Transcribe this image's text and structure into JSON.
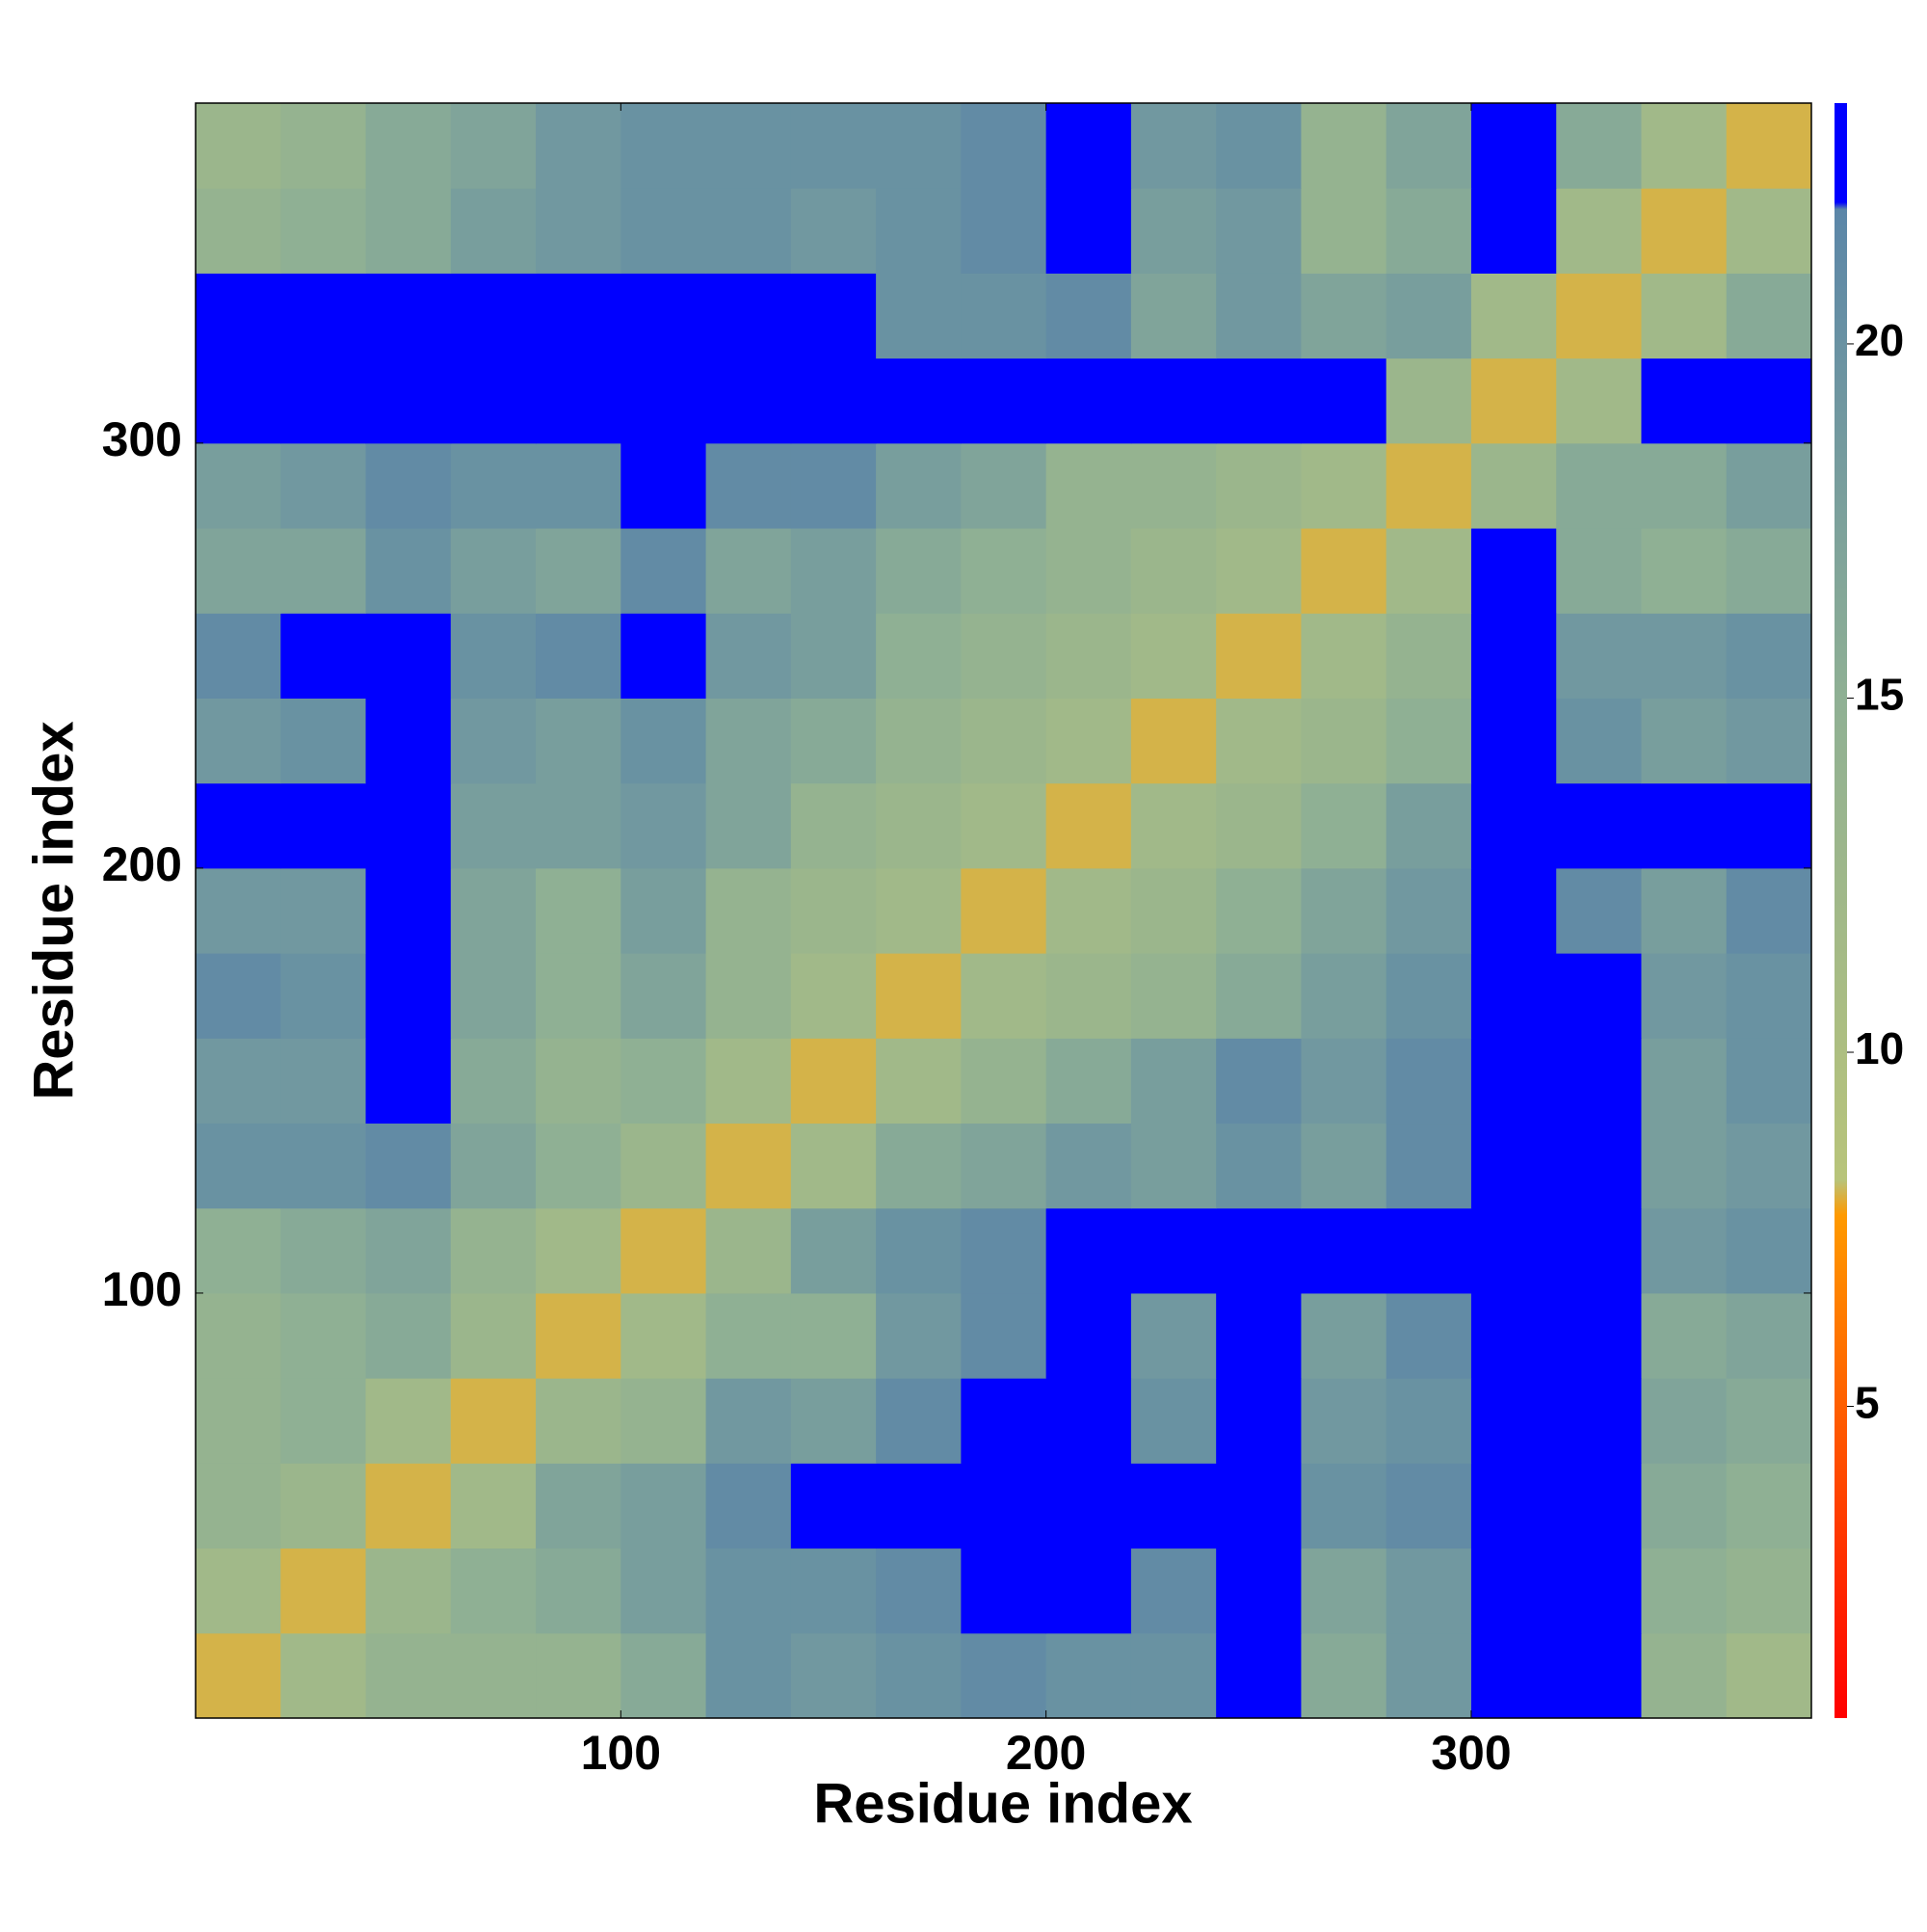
{
  "chart_data": {
    "type": "heatmap",
    "x_label": "Residue index",
    "y_label": "Residue index",
    "x_bins": [
      0,
      20,
      40,
      60,
      80,
      100,
      120,
      140,
      160,
      180,
      200,
      220,
      240,
      260,
      280,
      300,
      320,
      340,
      360,
      380
    ],
    "y_bins": [
      0,
      20,
      40,
      60,
      80,
      100,
      120,
      140,
      160,
      180,
      200,
      220,
      240,
      260,
      280,
      300,
      320,
      340,
      360,
      380
    ],
    "xlim": [
      0,
      380
    ],
    "ylim": [
      0,
      380
    ],
    "xticks": [
      100,
      200,
      300
    ],
    "yticks": [
      100,
      200,
      300
    ],
    "colorbar_lim": [
      0.6,
      23.4
    ],
    "colorbar_ticks": [
      5,
      10,
      15,
      20
    ],
    "colorscale": [
      [
        0.6,
        "#ff0000"
      ],
      [
        3,
        "#ff3300"
      ],
      [
        7.7,
        "#ff9a00"
      ],
      [
        8.2,
        "#b8c47a"
      ],
      [
        15,
        "#8fb094"
      ],
      [
        21.9,
        "#5b86a8"
      ],
      [
        22,
        "#0000ff"
      ],
      [
        23.4,
        "#0000ff"
      ]
    ],
    "matrix": [
      [
        8,
        12,
        14,
        14,
        14,
        16,
        20,
        19,
        20,
        21,
        20,
        20,
        22,
        16,
        19,
        23,
        22,
        14,
        12
      ],
      [
        12,
        8,
        13,
        15,
        16,
        18,
        20,
        20,
        21,
        22,
        22,
        21,
        22,
        17,
        19,
        23,
        22,
        15,
        14
      ],
      [
        14,
        13,
        8,
        12,
        17,
        18,
        21,
        22,
        22,
        23,
        23,
        22,
        23,
        20,
        21,
        23,
        23,
        16,
        15
      ],
      [
        14,
        15,
        12,
        8,
        13,
        14,
        19,
        18,
        21,
        22,
        22,
        20,
        22,
        19,
        20,
        23,
        23,
        17,
        16
      ],
      [
        14,
        15,
        16,
        13,
        8,
        12,
        15,
        15,
        19,
        21,
        22,
        19,
        22,
        18,
        21,
        23,
        23,
        16,
        17
      ],
      [
        15,
        16,
        17,
        14,
        12,
        8,
        13,
        18,
        20,
        21,
        22,
        22,
        23,
        22,
        23,
        23,
        23,
        19,
        20
      ],
      [
        20,
        20,
        21,
        17,
        15,
        13,
        8,
        12,
        16,
        17,
        19,
        18,
        20,
        18,
        21,
        23,
        23,
        18,
        19
      ],
      [
        19,
        19,
        22,
        16,
        14,
        15,
        12,
        8,
        12,
        14,
        16,
        18,
        21,
        19,
        21,
        23,
        22,
        18,
        20
      ],
      [
        21,
        20,
        22,
        17,
        15,
        17,
        14,
        12,
        8,
        12,
        13,
        14,
        16,
        18,
        20,
        23,
        22,
        19,
        20
      ],
      [
        19,
        19,
        22,
        17,
        15,
        18,
        14,
        13,
        12,
        8,
        12,
        13,
        15,
        17,
        19,
        23,
        21,
        18,
        21
      ],
      [
        22,
        22,
        22,
        18,
        18,
        19,
        17,
        14,
        13,
        12,
        8,
        12,
        13,
        15,
        18,
        23,
        22,
        22,
        22
      ],
      [
        19,
        20,
        22,
        19,
        18,
        20,
        17,
        16,
        14,
        13,
        12,
        8,
        12,
        13,
        15,
        23,
        20,
        18,
        19
      ],
      [
        21,
        22,
        22,
        20,
        21,
        22,
        19,
        18,
        15,
        14,
        13,
        12,
        8,
        12,
        14,
        23,
        19,
        19,
        20
      ],
      [
        17,
        17,
        20,
        18,
        17,
        21,
        17,
        18,
        16,
        15,
        14,
        13,
        12,
        8,
        12,
        22,
        16,
        15,
        16
      ],
      [
        18,
        19,
        21,
        20,
        20,
        22,
        21,
        21,
        18,
        17,
        14,
        14,
        13,
        12,
        8,
        13,
        16,
        16,
        18
      ],
      [
        23,
        23,
        23,
        23,
        23,
        23,
        23,
        23,
        23,
        23,
        23,
        23,
        23,
        22,
        13,
        8,
        12,
        23,
        23
      ],
      [
        22,
        22,
        23,
        23,
        23,
        23,
        23,
        22,
        20,
        20,
        21,
        17,
        19,
        17,
        18,
        12,
        8,
        12,
        16
      ],
      [
        14,
        15,
        16,
        18,
        19,
        20,
        20,
        19,
        20,
        21,
        22,
        18,
        19,
        14,
        16,
        23,
        12,
        8,
        12
      ],
      [
        13,
        14,
        16,
        17,
        19,
        20,
        20,
        20,
        20,
        21,
        22,
        19,
        20,
        14,
        17,
        23,
        16,
        12,
        8
      ]
    ]
  }
}
